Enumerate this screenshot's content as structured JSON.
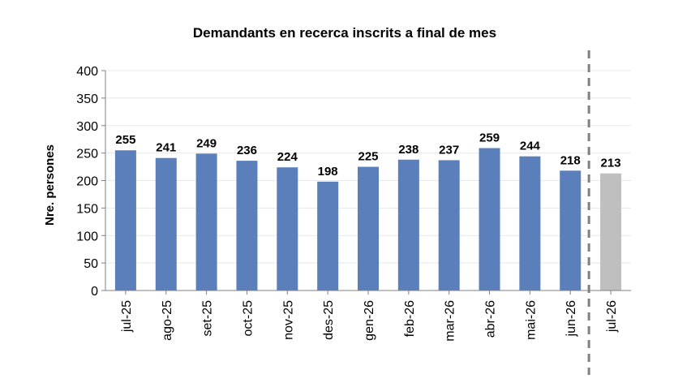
{
  "chart_data": {
    "type": "bar",
    "title": "Demandants en recerca inscrits  a final de mes",
    "xlabel": "",
    "ylabel": "Nre. persones",
    "ylim": [
      0,
      400
    ],
    "yticks": [
      "0",
      "50",
      "100",
      "150",
      "200",
      "250",
      "300",
      "350",
      "400"
    ],
    "categories": [
      "jul-25",
      "ago-25",
      "set-25",
      "oct-25",
      "nov-25",
      "des-25",
      "gen-26",
      "feb-26",
      "mar-26",
      "abr-26",
      "mai-26",
      "jun-26",
      "jul-26"
    ],
    "values": [
      255,
      241,
      249,
      236,
      224,
      198,
      225,
      238,
      237,
      259,
      244,
      218,
      213
    ],
    "value_labels": [
      "255",
      "241",
      "249",
      "236",
      "224",
      "198",
      "225",
      "238",
      "237",
      "259",
      "244",
      "218",
      "213"
    ],
    "grid": true,
    "legend": "none",
    "colors": {
      "bar": "#5b7fbb",
      "highlight_bar": "#bfbfbf",
      "highlight_label": "#3f4a1e",
      "grid": "#e8e8e8",
      "axis": "#808080",
      "divider": "#808080"
    },
    "highlight_index": 12,
    "divider": {
      "style": "dashed",
      "between": [
        "jun-26",
        "jul-26"
      ]
    }
  }
}
